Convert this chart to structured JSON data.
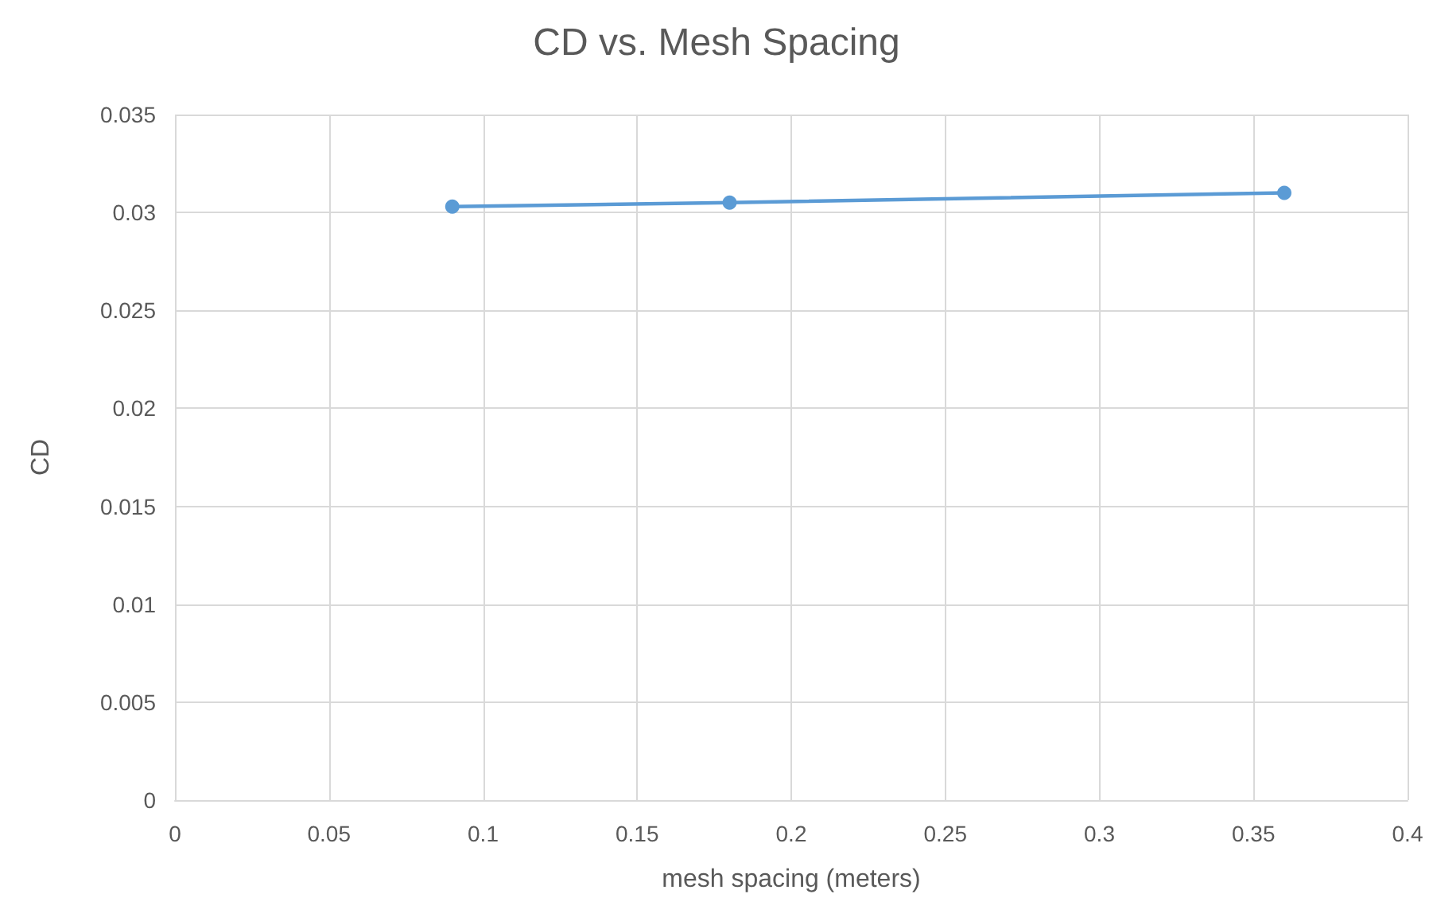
{
  "chart_data": {
    "type": "line",
    "title": "CD vs. Mesh Spacing",
    "xlabel": "mesh spacing (meters)",
    "ylabel": "CD",
    "x": [
      0.09,
      0.18,
      0.36
    ],
    "series": [
      {
        "color": "#5b9bd5",
        "values": [
          0.0303,
          0.0305,
          0.031
        ]
      }
    ],
    "xlim": [
      0,
      0.4
    ],
    "xticks": [
      0,
      0.05,
      0.1,
      0.15,
      0.2,
      0.25,
      0.3,
      0.35,
      0.4
    ],
    "ylim": [
      0,
      0.035
    ],
    "yticks": [
      0,
      0.005,
      0.01,
      0.015,
      0.02,
      0.025,
      0.03,
      0.035
    ],
    "grid": true,
    "marker": "circle",
    "line_style": "solid"
  }
}
